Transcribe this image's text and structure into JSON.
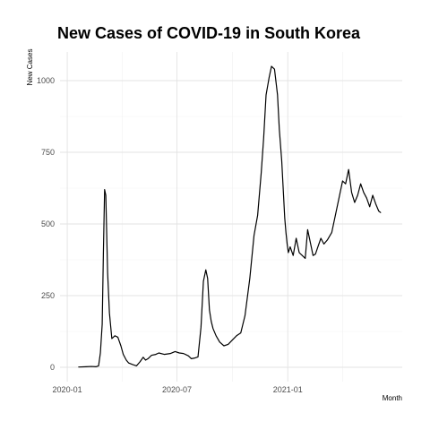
{
  "chart_data": {
    "type": "line",
    "title": "New Cases of COVID-19 in South Korea",
    "xlabel": "Month",
    "ylabel": "New Cases",
    "x_type": "date",
    "xlim": [
      "2019-12-20",
      "2021-07-10"
    ],
    "ylim": [
      -50,
      1100
    ],
    "x_ticks": [
      {
        "value": "2020-01-01",
        "label": "2020-01"
      },
      {
        "value": "2020-07-01",
        "label": "2020-07"
      },
      {
        "value": "2021-01-01",
        "label": "2021-01"
      }
    ],
    "y_ticks": [
      0,
      250,
      500,
      750,
      1000
    ],
    "grid": true,
    "legend": "none",
    "line_color": "#000000",
    "series": [
      {
        "x": [
          "2020-01-20",
          "2020-02-01",
          "2020-02-10",
          "2020-02-18",
          "2020-02-22",
          "2020-02-25",
          "2020-02-28",
          "2020-03-01",
          "2020-03-03",
          "2020-03-05",
          "2020-03-08",
          "2020-03-11",
          "2020-03-15",
          "2020-03-20",
          "2020-03-25",
          "2020-03-30",
          "2020-04-03",
          "2020-04-08",
          "2020-04-12",
          "2020-04-18",
          "2020-04-25",
          "2020-05-01",
          "2020-05-06",
          "2020-05-10",
          "2020-05-14",
          "2020-05-20",
          "2020-05-27",
          "2020-06-01",
          "2020-06-10",
          "2020-06-20",
          "2020-06-28",
          "2020-07-05",
          "2020-07-12",
          "2020-07-20",
          "2020-07-25",
          "2020-07-30",
          "2020-08-05",
          "2020-08-10",
          "2020-08-14",
          "2020-08-18",
          "2020-08-21",
          "2020-08-24",
          "2020-08-27",
          "2020-08-30",
          "2020-09-04",
          "2020-09-10",
          "2020-09-17",
          "2020-09-24",
          "2020-10-01",
          "2020-10-08",
          "2020-10-15",
          "2020-10-22",
          "2020-10-30",
          "2020-11-06",
          "2020-11-12",
          "2020-11-18",
          "2020-11-22",
          "2020-11-26",
          "2020-12-01",
          "2020-12-05",
          "2020-12-10",
          "2020-12-15",
          "2020-12-18",
          "2020-12-22",
          "2020-12-25",
          "2020-12-27",
          "2020-12-29",
          "2020-12-31",
          "2021-01-02",
          "2021-01-05",
          "2021-01-10",
          "2021-01-15",
          "2021-01-20",
          "2021-01-25",
          "2021-01-30",
          "2021-02-03",
          "2021-02-08",
          "2021-02-12",
          "2021-02-16",
          "2021-02-20",
          "2021-02-25",
          "2021-03-02",
          "2021-03-08",
          "2021-03-15",
          "2021-03-22",
          "2021-03-28",
          "2021-04-02",
          "2021-04-07",
          "2021-04-12",
          "2021-04-17",
          "2021-04-22",
          "2021-04-27",
          "2021-05-02",
          "2021-05-07",
          "2021-05-12",
          "2021-05-17",
          "2021-05-22",
          "2021-05-27",
          "2021-06-01",
          "2021-06-04"
        ],
        "y": [
          1,
          2,
          3,
          2,
          5,
          50,
          150,
          400,
          620,
          600,
          330,
          190,
          100,
          110,
          105,
          75,
          45,
          25,
          15,
          10,
          5,
          20,
          35,
          25,
          30,
          42,
          45,
          50,
          45,
          48,
          55,
          50,
          48,
          40,
          30,
          32,
          36,
          140,
          300,
          340,
          310,
          200,
          160,
          135,
          110,
          88,
          75,
          80,
          95,
          110,
          120,
          180,
          310,
          460,
          530,
          680,
          800,
          950,
          1010,
          1050,
          1040,
          950,
          830,
          720,
          600,
          520,
          470,
          430,
          400,
          420,
          390,
          450,
          400,
          390,
          380,
          480,
          430,
          390,
          395,
          420,
          450,
          430,
          445,
          470,
          540,
          600,
          650,
          640,
          690,
          610,
          575,
          600,
          640,
          610,
          590,
          560,
          600,
          570,
          545,
          540
        ]
      }
    ]
  }
}
